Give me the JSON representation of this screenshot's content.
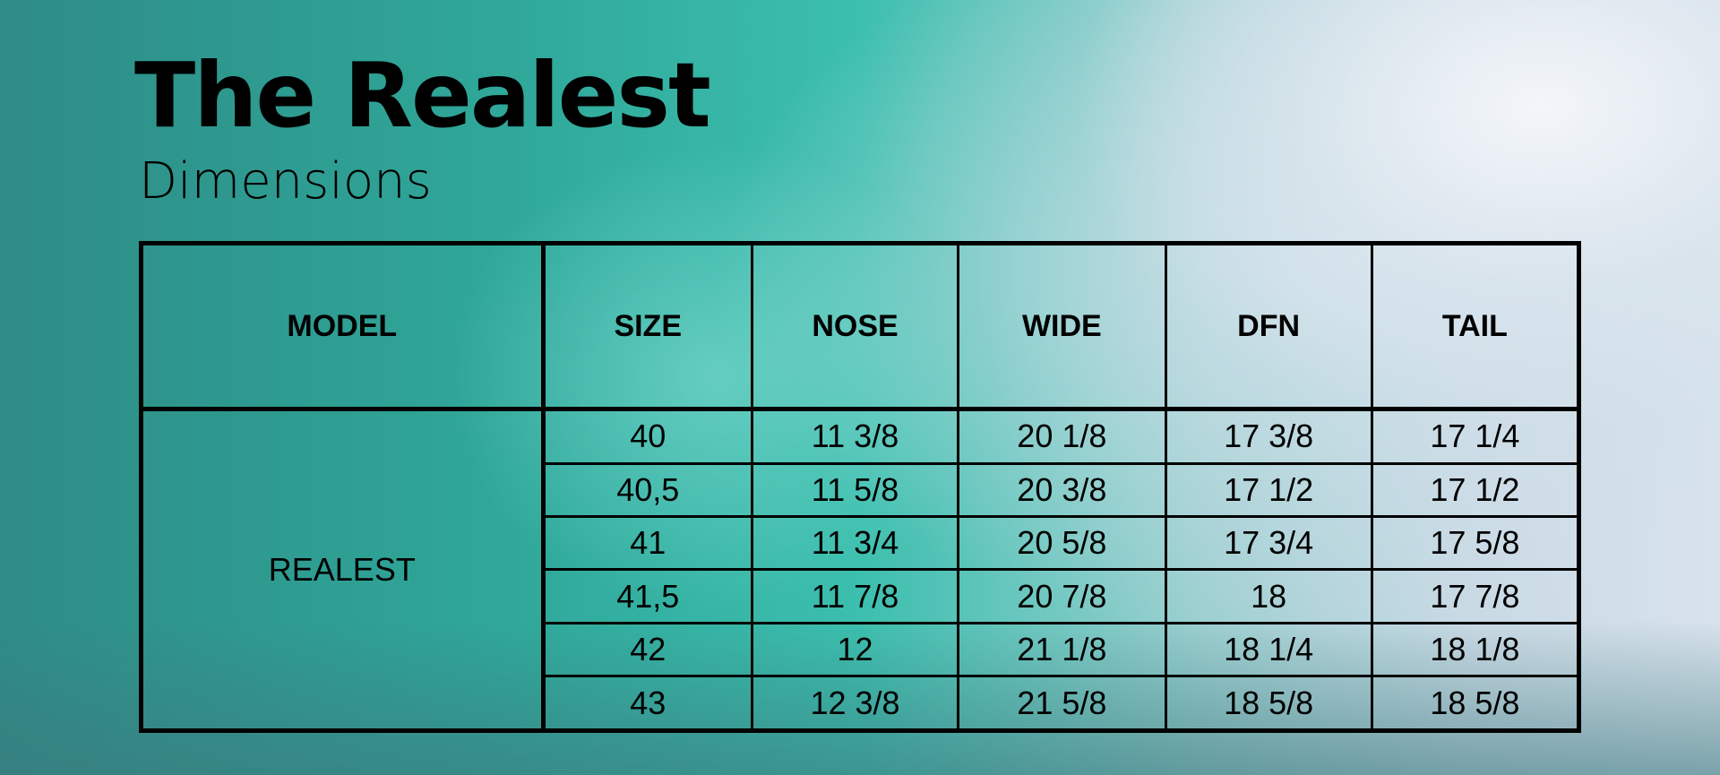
{
  "title": "The Realest",
  "subtitle": "Dimensions",
  "table": {
    "headers": [
      "MODEL",
      "SIZE",
      "NOSE",
      "WIDE",
      "DFN",
      "TAIL"
    ],
    "model": "REALEST",
    "rows": [
      [
        "40",
        "11 3/8",
        "20 1/8",
        "17 3/8",
        "17 1/4"
      ],
      [
        "40,5",
        "11 5/8",
        "20 3/8",
        "17 1/2",
        "17 1/2"
      ],
      [
        "41",
        "11 3/4",
        "20 5/8",
        "17 3/4",
        "17 5/8"
      ],
      [
        "41,5",
        "11 7/8",
        "20 7/8",
        "18",
        "17 7/8"
      ],
      [
        "42",
        "12",
        "21 1/8",
        "18 1/4",
        "18 1/8"
      ],
      [
        "43",
        "12 3/8",
        "21 5/8",
        "18 5/8",
        "18 5/8"
      ]
    ]
  }
}
